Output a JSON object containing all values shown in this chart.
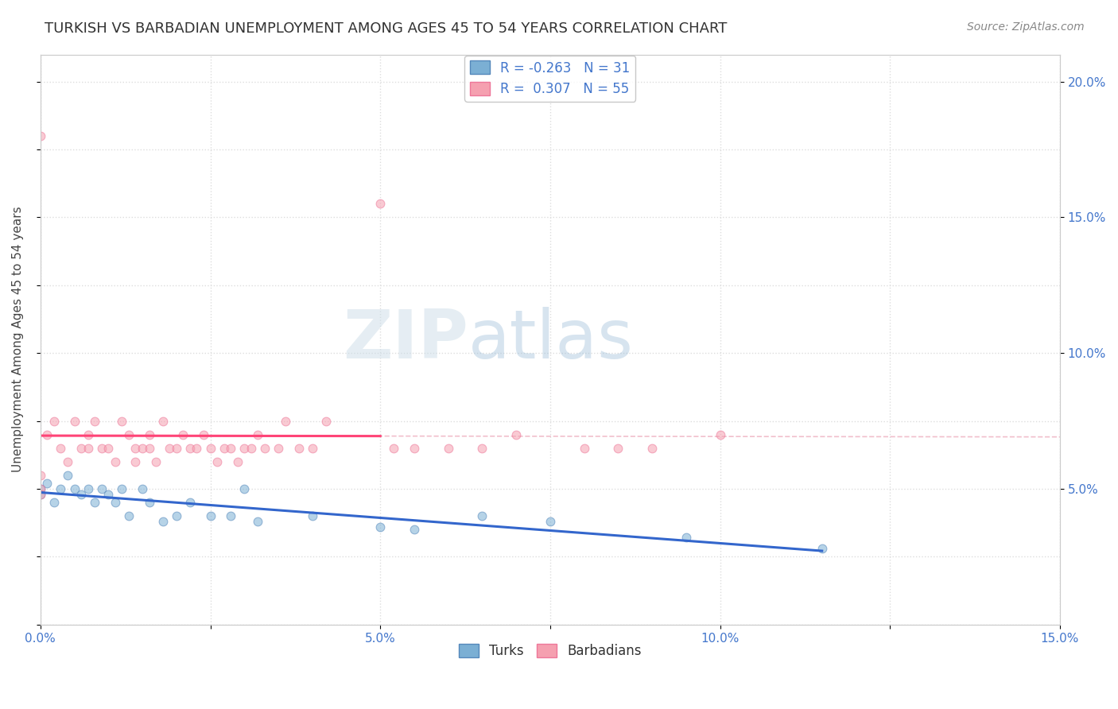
{
  "title": "TURKISH VS BARBADIAN UNEMPLOYMENT AMONG AGES 45 TO 54 YEARS CORRELATION CHART",
  "source": "Source: ZipAtlas.com",
  "ylabel": "Unemployment Among Ages 45 to 54 years",
  "xlabel": "",
  "xlim": [
    0.0,
    0.15
  ],
  "ylim": [
    0.0,
    0.21
  ],
  "xticks": [
    0.0,
    0.025,
    0.05,
    0.075,
    0.1,
    0.125,
    0.15
  ],
  "xticklabels": [
    "0.0%",
    "",
    "5.0%",
    "",
    "10.0%",
    "",
    "15.0%"
  ],
  "yticks_left": [
    0.0,
    0.025,
    0.05,
    0.075,
    0.1,
    0.125,
    0.15,
    0.175,
    0.2
  ],
  "yticks_right": [
    0.05,
    0.1,
    0.15,
    0.2
  ],
  "yticklabels_right": [
    "5.0%",
    "10.0%",
    "15.0%",
    "20.0%"
  ],
  "turks_color": "#7BAFD4",
  "barbadians_color": "#F5A0B0",
  "turks_edge": "#5588BB",
  "barbadians_edge": "#EE7799",
  "trend_turks_color": "#3366CC",
  "trend_barbadians_color": "#FF4477",
  "diag_color": "#EEB0C0",
  "R_turks": -0.263,
  "N_turks": 31,
  "R_barbadians": 0.307,
  "N_barbadians": 55,
  "turks_x": [
    0.0,
    0.0,
    0.001,
    0.002,
    0.003,
    0.004,
    0.005,
    0.006,
    0.007,
    0.008,
    0.009,
    0.01,
    0.011,
    0.012,
    0.013,
    0.015,
    0.016,
    0.018,
    0.02,
    0.022,
    0.025,
    0.028,
    0.03,
    0.032,
    0.04,
    0.05,
    0.055,
    0.065,
    0.075,
    0.095,
    0.115
  ],
  "turks_y": [
    0.05,
    0.048,
    0.052,
    0.045,
    0.05,
    0.055,
    0.05,
    0.048,
    0.05,
    0.045,
    0.05,
    0.048,
    0.045,
    0.05,
    0.04,
    0.05,
    0.045,
    0.038,
    0.04,
    0.045,
    0.04,
    0.04,
    0.05,
    0.038,
    0.04,
    0.036,
    0.035,
    0.04,
    0.038,
    0.032,
    0.028
  ],
  "barbadians_x": [
    0.0,
    0.0,
    0.0,
    0.0,
    0.001,
    0.002,
    0.003,
    0.004,
    0.005,
    0.006,
    0.007,
    0.007,
    0.008,
    0.009,
    0.01,
    0.011,
    0.012,
    0.013,
    0.014,
    0.014,
    0.015,
    0.016,
    0.016,
    0.017,
    0.018,
    0.019,
    0.02,
    0.021,
    0.022,
    0.023,
    0.024,
    0.025,
    0.026,
    0.027,
    0.028,
    0.029,
    0.03,
    0.031,
    0.032,
    0.033,
    0.035,
    0.036,
    0.038,
    0.04,
    0.042,
    0.05,
    0.052,
    0.055,
    0.06,
    0.065,
    0.07,
    0.08,
    0.085,
    0.09,
    0.1
  ],
  "barbadians_y": [
    0.18,
    0.055,
    0.05,
    0.048,
    0.07,
    0.075,
    0.065,
    0.06,
    0.075,
    0.065,
    0.07,
    0.065,
    0.075,
    0.065,
    0.065,
    0.06,
    0.075,
    0.07,
    0.065,
    0.06,
    0.065,
    0.07,
    0.065,
    0.06,
    0.075,
    0.065,
    0.065,
    0.07,
    0.065,
    0.065,
    0.07,
    0.065,
    0.06,
    0.065,
    0.065,
    0.06,
    0.065,
    0.065,
    0.07,
    0.065,
    0.065,
    0.075,
    0.065,
    0.065,
    0.075,
    0.155,
    0.065,
    0.065,
    0.065,
    0.065,
    0.07,
    0.065,
    0.065,
    0.065,
    0.07
  ],
  "background_color": "#FFFFFF",
  "plot_bg_color": "#FFFFFF",
  "grid_color": "#DDDDDD",
  "watermark_zip": "ZIP",
  "watermark_atlas": "atlas",
  "title_fontsize": 13,
  "axis_label_fontsize": 11,
  "tick_fontsize": 11,
  "legend_fontsize": 12,
  "marker_size": 60,
  "marker_alpha": 0.55
}
